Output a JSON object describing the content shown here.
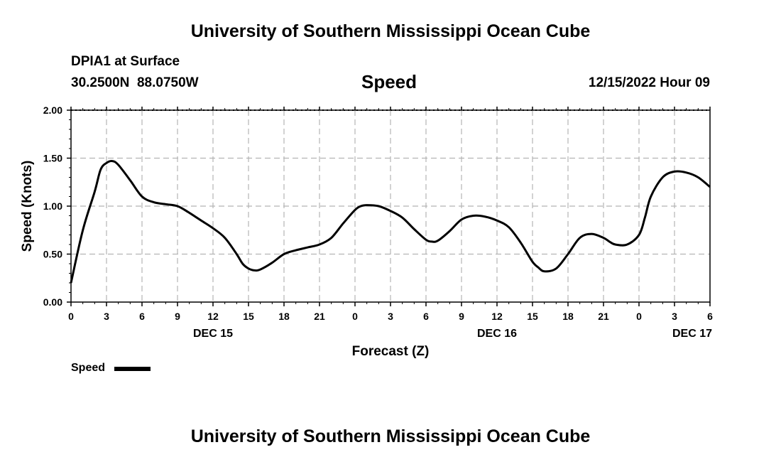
{
  "page": {
    "title_top": "University of Southern Mississippi Ocean Cube",
    "title_bottom": "University of Southern Mississippi Ocean Cube",
    "station": "DPIA1 at Surface",
    "coords": "30.2500N  88.0750W",
    "variable": "Speed",
    "datetime": "12/15/2022 Hour 09"
  },
  "legend": {
    "label": "Speed"
  },
  "chart_data": {
    "type": "line",
    "title": "Speed",
    "xlabel": "Forecast (Z)",
    "ylabel": "Speed (Knots)",
    "xlim": [
      0,
      54
    ],
    "ylim": [
      0,
      2
    ],
    "grid": true,
    "x_tick_values": [
      0,
      3,
      6,
      9,
      12,
      15,
      18,
      21,
      24,
      27,
      30,
      33,
      36,
      39,
      42,
      45,
      48,
      51,
      54
    ],
    "x_tick_labels": [
      "0",
      "3",
      "6",
      "9",
      "12",
      "15",
      "18",
      "21",
      "0",
      "3",
      "6",
      "9",
      "12",
      "15",
      "18",
      "21",
      "0",
      "3",
      "6"
    ],
    "y_tick_values": [
      0,
      0.5,
      1,
      1.5,
      2
    ],
    "y_tick_labels": [
      "0.00",
      "0.50",
      "1.00",
      "1.50",
      "2.00"
    ],
    "day_labels": [
      {
        "x": 12,
        "label": "DEC 15"
      },
      {
        "x": 36,
        "label": "DEC 16"
      },
      {
        "x": 52.5,
        "label": "DEC 17"
      }
    ],
    "series": [
      {
        "name": "Speed",
        "color": "#000000",
        "x": [
          0,
          1,
          2,
          2.5,
          3,
          3.5,
          4,
          5,
          6,
          7,
          8,
          9,
          10,
          11,
          12,
          13,
          14,
          14.5,
          15,
          15.5,
          16,
          17,
          18,
          19,
          20,
          21,
          22,
          23,
          24,
          24.5,
          25,
          26,
          27,
          28,
          29,
          30,
          30.5,
          31,
          32,
          33,
          34,
          35,
          36,
          37,
          38,
          39,
          39.5,
          40,
          41,
          42,
          43,
          44,
          45,
          45.5,
          46,
          47,
          48,
          48.5,
          49,
          50,
          51,
          52,
          53,
          54
        ],
        "values": [
          0.2,
          0.75,
          1.15,
          1.38,
          1.45,
          1.47,
          1.43,
          1.27,
          1.1,
          1.04,
          1.02,
          1.0,
          0.93,
          0.85,
          0.77,
          0.67,
          0.5,
          0.4,
          0.35,
          0.33,
          0.34,
          0.41,
          0.5,
          0.54,
          0.57,
          0.6,
          0.67,
          0.82,
          0.96,
          1.0,
          1.01,
          1.0,
          0.95,
          0.88,
          0.76,
          0.65,
          0.63,
          0.64,
          0.74,
          0.86,
          0.9,
          0.89,
          0.85,
          0.78,
          0.62,
          0.42,
          0.36,
          0.32,
          0.35,
          0.5,
          0.67,
          0.71,
          0.67,
          0.63,
          0.6,
          0.6,
          0.7,
          0.88,
          1.1,
          1.3,
          1.36,
          1.35,
          1.3,
          1.2
        ]
      }
    ]
  }
}
